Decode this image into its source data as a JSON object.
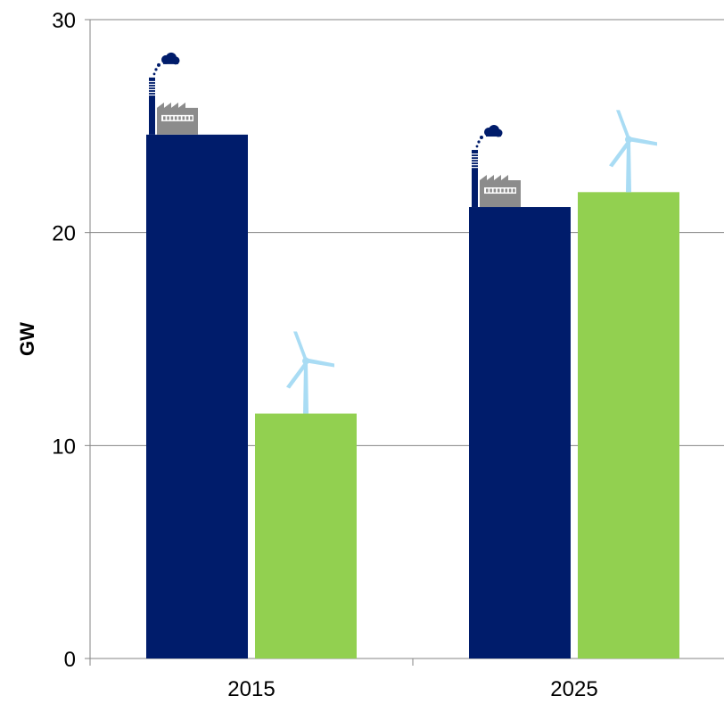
{
  "chart_data": {
    "type": "bar",
    "categories": [
      "2015",
      "2025"
    ],
    "series": [
      {
        "values": [
          24.6,
          21.2
        ],
        "color": "#001C6B",
        "icon": "factory-smokestack-icon"
      },
      {
        "values": [
          11.5,
          21.9
        ],
        "color": "#92D050",
        "icon": "wind-turbine-icon"
      }
    ],
    "title": "",
    "xlabel": "",
    "ylabel": "GW",
    "ylim": [
      0,
      30
    ],
    "yticks": [
      0,
      10,
      20,
      30
    ],
    "ytick_labels": [
      "0",
      "10",
      "20",
      "30"
    ],
    "grid": true,
    "legend": "none"
  },
  "colors": {
    "grid": "#868686",
    "factory_gray": "#8C8C8C",
    "turbine_blue": "#A9DCF4"
  }
}
